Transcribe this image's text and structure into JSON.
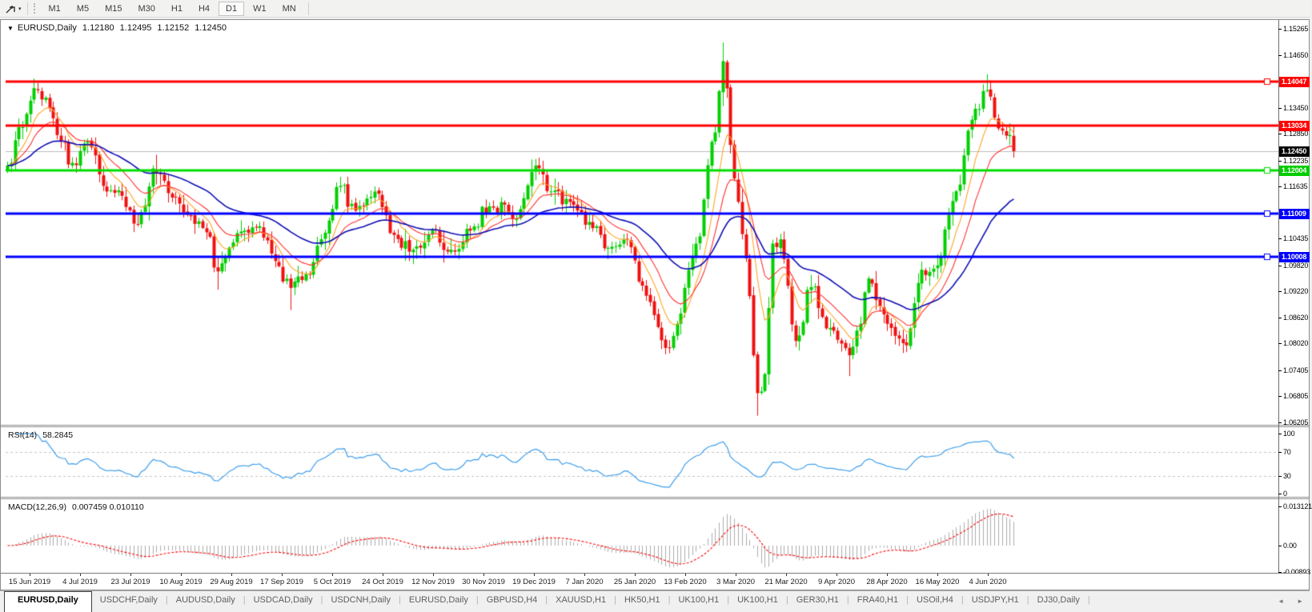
{
  "toolbar": {
    "tool_icon": "chart-cursor-tool",
    "caret": "▾",
    "timeframes": [
      "M1",
      "M5",
      "M15",
      "M30",
      "H1",
      "H4",
      "D1",
      "W1",
      "MN"
    ],
    "selected_timeframe": "D1"
  },
  "chart": {
    "collapse_icon": "▼",
    "symbol": "EURUSD,Daily",
    "quotes": {
      "open": "1.12180",
      "high": "1.12495",
      "low": "1.12152",
      "close": "1.12450"
    }
  },
  "price_axis": {
    "ticks": [
      "1.15265",
      "1.14650",
      "1.13450",
      "1.12850",
      "1.12235",
      "1.11635",
      "1.10435",
      "1.09820",
      "1.09220",
      "1.08620",
      "1.08020",
      "1.07405",
      "1.06805",
      "1.06205"
    ],
    "badges": [
      {
        "text": "1.14047",
        "bg": "#FF0000",
        "fg": "#FFFFFF"
      },
      {
        "text": "1.13034",
        "bg": "#FF0000",
        "fg": "#FFFFFF"
      },
      {
        "text": "1.12450",
        "bg": "#000000",
        "fg": "#FFFFFF"
      },
      {
        "text": "1.12004",
        "bg": "#00CC00",
        "fg": "#FFFFFF"
      },
      {
        "text": "1.11009",
        "bg": "#0000FF",
        "fg": "#FFFFFF"
      },
      {
        "text": "1.10008",
        "bg": "#0000FF",
        "fg": "#FFFFFF"
      }
    ]
  },
  "indicators": {
    "rsi": {
      "label": "RSI(14)",
      "value": "58.2845",
      "ticks": [
        100,
        70,
        30,
        0
      ],
      "levels": [
        70,
        30
      ],
      "line_color": "#3E9EEB"
    },
    "macd": {
      "label": "MACD(12,26,9)",
      "value": "0.007459 0.010110",
      "ticks": [
        {
          "text": "0.013121",
          "v": 0.013121
        },
        {
          "text": "0.00",
          "v": 0
        },
        {
          "text": "-0.00893",
          "v": -0.00893
        }
      ],
      "hist_color": "#ACACAC",
      "signal_color": "#FF0000"
    }
  },
  "x_axis": {
    "labels": [
      "15 Jun 2019",
      "4 Jul 2019",
      "23 Jul 2019",
      "10 Aug 2019",
      "29 Aug 2019",
      "17 Sep 2019",
      "5 Oct 2019",
      "24 Oct 2019",
      "12 Nov 2019",
      "30 Nov 2019",
      "19 Dec 2019",
      "7 Jan 2020",
      "25 Jan 2020",
      "13 Feb 2020",
      "3 Mar 2020",
      "21 Mar 2020",
      "9 Apr 2020",
      "28 Apr 2020",
      "16 May 2020",
      "4 Jun 2020"
    ]
  },
  "tabs": {
    "separator": "|",
    "items": [
      {
        "label": "EURUSD,Daily",
        "active": true
      },
      {
        "label": "USDCHF,Daily",
        "active": false
      },
      {
        "label": "AUDUSD,Daily",
        "active": false
      },
      {
        "label": "USDCAD,Daily",
        "active": false
      },
      {
        "label": "USDCNH,Daily",
        "active": false
      },
      {
        "label": "EURUSD,Daily",
        "active": false
      },
      {
        "label": "GBPUSD,H4",
        "active": false
      },
      {
        "label": "XAUUSD,H1",
        "active": false
      },
      {
        "label": "HK50,H1",
        "active": false
      },
      {
        "label": "UK100,H1",
        "active": false
      },
      {
        "label": "UK100,H1",
        "active": false
      },
      {
        "label": "GER30,H1",
        "active": false
      },
      {
        "label": "FRA40,H1",
        "active": false
      },
      {
        "label": "USOil,H4",
        "active": false
      },
      {
        "label": "USDJPY,H1",
        "active": false
      },
      {
        "label": "DJ30,Daily",
        "active": false
      }
    ]
  },
  "tab_scroll": {
    "left": "◄",
    "right": "►"
  },
  "chart_data": {
    "type": "candlestick",
    "symbol": "EURUSD",
    "timeframe": "Daily",
    "visible_range": {
      "start": "15 Jun 2019",
      "end": "mid Jun 2020"
    },
    "price_range": [
      1.06205,
      1.15265
    ],
    "n": 264,
    "bull_color": "#00CF00",
    "bear_color": "#F01010",
    "close_anchors": [
      [
        0,
        1.1212
      ],
      [
        4,
        1.13
      ],
      [
        7,
        1.139
      ],
      [
        10,
        1.1368
      ],
      [
        13,
        1.1282
      ],
      [
        17,
        1.1218
      ],
      [
        21,
        1.1268
      ],
      [
        26,
        1.1152
      ],
      [
        30,
        1.1142
      ],
      [
        33,
        1.1078
      ],
      [
        36,
        1.112
      ],
      [
        38,
        1.1205
      ],
      [
        43,
        1.1138
      ],
      [
        48,
        1.1095
      ],
      [
        52,
        1.1058
      ],
      [
        55,
        1.0968
      ],
      [
        59,
        1.1035
      ],
      [
        62,
        1.1062
      ],
      [
        66,
        1.1072
      ],
      [
        70,
        1.0992
      ],
      [
        74,
        1.093
      ],
      [
        78,
        1.0962
      ],
      [
        82,
        1.1042
      ],
      [
        87,
        1.1165
      ],
      [
        91,
        1.1108
      ],
      [
        96,
        1.1152
      ],
      [
        101,
        1.1052
      ],
      [
        106,
        1.1018
      ],
      [
        111,
        1.1062
      ],
      [
        116,
        1.1018
      ],
      [
        121,
        1.1062
      ],
      [
        126,
        1.1118
      ],
      [
        130,
        1.1122
      ],
      [
        133,
        1.1088
      ],
      [
        138,
        1.1212
      ],
      [
        142,
        1.1152
      ],
      [
        147,
        1.1128
      ],
      [
        152,
        1.1082
      ],
      [
        157,
        1.1022
      ],
      [
        162,
        1.1042
      ],
      [
        167,
        1.0912
      ],
      [
        172,
        1.0792
      ],
      [
        175,
        1.0848
      ],
      [
        180,
        1.1032
      ],
      [
        185,
        1.1288
      ],
      [
        187,
        1.1452
      ],
      [
        190,
        1.1182
      ],
      [
        193,
        1.0998
      ],
      [
        196,
        1.0688
      ],
      [
        198,
        1.0732
      ],
      [
        200,
        1.1032
      ],
      [
        202,
        1.1042
      ],
      [
        206,
        1.0808
      ],
      [
        210,
        1.0932
      ],
      [
        215,
        1.0838
      ],
      [
        220,
        1.0775
      ],
      [
        222,
        1.0832
      ],
      [
        225,
        1.0952
      ],
      [
        227,
        1.0902
      ],
      [
        231,
        1.0838
      ],
      [
        235,
        1.0798
      ],
      [
        239,
        1.0972
      ],
      [
        243,
        1.0982
      ],
      [
        246,
        1.1098
      ],
      [
        249,
        1.1168
      ],
      [
        251,
        1.1292
      ],
      [
        254,
        1.1342
      ],
      [
        256,
        1.1385
      ],
      [
        258,
        1.1322
      ],
      [
        260,
        1.1292
      ],
      [
        262,
        1.1282
      ],
      [
        263,
        1.1245
      ]
    ],
    "wick_extremes": [
      {
        "i": 7,
        "h": 1.1412
      },
      {
        "i": 55,
        "l": 1.0926
      },
      {
        "i": 74,
        "l": 1.0879
      },
      {
        "i": 172,
        "l": 1.0778
      },
      {
        "i": 187,
        "h": 1.1495
      },
      {
        "i": 196,
        "l": 1.0636
      },
      {
        "i": 220,
        "l": 1.0727
      },
      {
        "i": 256,
        "h": 1.1422
      }
    ],
    "moving_averages": [
      {
        "name": "fast",
        "type": "ema",
        "period": 8,
        "color": "#FFA428"
      },
      {
        "name": "medium",
        "type": "ema",
        "period": 16,
        "color": "#FF3030"
      },
      {
        "name": "slow",
        "type": "ema",
        "period": 40,
        "color": "#0E0EB4"
      }
    ],
    "horizontal_lines": [
      {
        "price": 1.14047,
        "color": "#FF0000",
        "width": 3,
        "selected": true
      },
      {
        "price": 1.13034,
        "color": "#FF0000",
        "width": 3,
        "selected": false
      },
      {
        "price": 1.12004,
        "color": "#00DD00",
        "width": 3,
        "selected": true
      },
      {
        "price": 1.11009,
        "color": "#0000FF",
        "width": 3,
        "selected": true
      },
      {
        "price": 1.10008,
        "color": "#0000FF",
        "width": 3,
        "selected": true
      }
    ],
    "current_price_line": {
      "price": 1.1245,
      "color": "#BDBDBD"
    }
  }
}
